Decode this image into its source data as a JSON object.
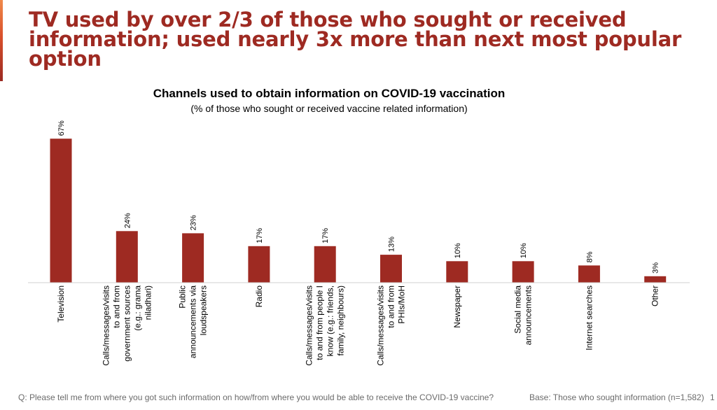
{
  "headline": "TV used by over 2/3 of those who sought or received information; used nearly 3x more than next most popular option",
  "footer": {
    "question": "Q: Please tell me from where you got such information on how/from where you would be able to receive the COVID-19 vaccine?",
    "base": "Base: Those who sought information (n=1,582)",
    "page_number": "1"
  },
  "colors": {
    "bar": "#9e2a22",
    "headline": "#9e2a22"
  },
  "chart_data": {
    "type": "bar",
    "title": "Channels used to obtain information on COVID-19 vaccination",
    "subtitle": "(% of those who sought or received vaccine related information)",
    "xlabel": "",
    "ylabel": "",
    "ylim": [
      0,
      70
    ],
    "grid": false,
    "categories": [
      "Television",
      "Calls/messages/visits to and from government sources (e.g.: grama niladhari)",
      "Public announcements via loudspeakers",
      "Radio",
      "Calls/messages/visits to and from people I know (e.g.: friends, family, neighbours)",
      "Calls/messages/visits to and from PHIs/MoH",
      "Newspaper",
      "Social media announcements",
      "Internet searches",
      "Other"
    ],
    "category_lines": [
      [
        "Television"
      ],
      [
        "Calls/messages/visits",
        "to and from",
        "government sources",
        "(e.g.: grama",
        "niladhari)"
      ],
      [
        "Public",
        "announcements via",
        "loudspeakers"
      ],
      [
        "Radio"
      ],
      [
        "Calls/messages/visits",
        "to and from people I",
        "know (e.g.: friends,",
        "family, neighbours)"
      ],
      [
        "Calls/messages/visits",
        "to and from",
        "PHIs/MoH"
      ],
      [
        "Newspaper"
      ],
      [
        "Social media",
        "announcements"
      ],
      [
        "Internet searches"
      ],
      [
        "Other"
      ]
    ],
    "values": [
      67,
      24,
      23,
      17,
      17,
      13,
      10,
      10,
      8,
      3
    ],
    "value_labels": [
      "67%",
      "24%",
      "23%",
      "17%",
      "17%",
      "13%",
      "10%",
      "10%",
      "8%",
      "3%"
    ]
  }
}
